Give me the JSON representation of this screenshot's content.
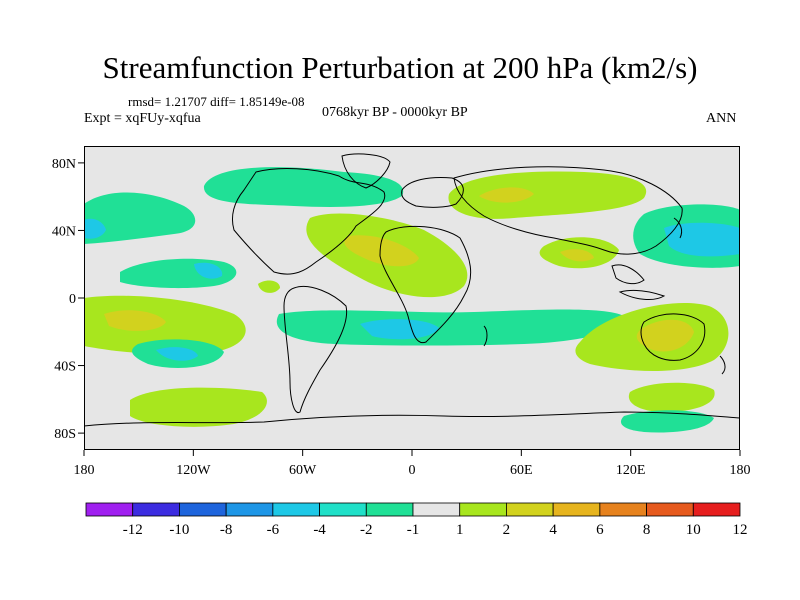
{
  "figure": {
    "title": "Streamfunction Perturbation at 200 hPa (km2/s)",
    "stats": "rmsd= 1.21707 diff= 1.85149e-08",
    "experiment": "Expt = xqFUy-xqfua",
    "period": "0768kyr BP - 0000kyr BP",
    "season": "ANN"
  },
  "axes": {
    "lat_ticks": [
      "80N",
      "40N",
      "0",
      "40S",
      "80S"
    ],
    "lon_ticks": [
      "180",
      "120W",
      "60W",
      "0",
      "60E",
      "120E",
      "180"
    ]
  },
  "colorbar": {
    "labels": [
      "-12",
      "-10",
      "-8",
      "-6",
      "-4",
      "-2",
      "-1",
      "1",
      "2",
      "4",
      "6",
      "8",
      "10",
      "12"
    ],
    "colors": [
      "#a020f0",
      "#3c2ce0",
      "#1e64dc",
      "#1e96e6",
      "#1ec8e6",
      "#20e0c8",
      "#20e096",
      "#e6e6e6",
      "#a8e61e",
      "#d2d21e",
      "#e6b41e",
      "#e6821e",
      "#e65a1e",
      "#e61e1e"
    ]
  },
  "map_data": {
    "type": "filled-contour-map",
    "projection": "cylindrical-equidistant",
    "lon_range": [
      -180,
      180
    ],
    "lat_range": [
      -90,
      90
    ],
    "positive_anomalies": [
      "North Atlantic / North Africa high",
      "Northern Eurasia high",
      "Middle East / South Asia high",
      "Australia high",
      "South Pacific high",
      "Southern Ocean (Pacific sector) high"
    ],
    "negative_anomalies": [
      "North Pacific / East Asia low",
      "East Pacific low",
      "South Atlantic low",
      "Southwest Pacific low",
      "Northeast Pacific low"
    ]
  }
}
